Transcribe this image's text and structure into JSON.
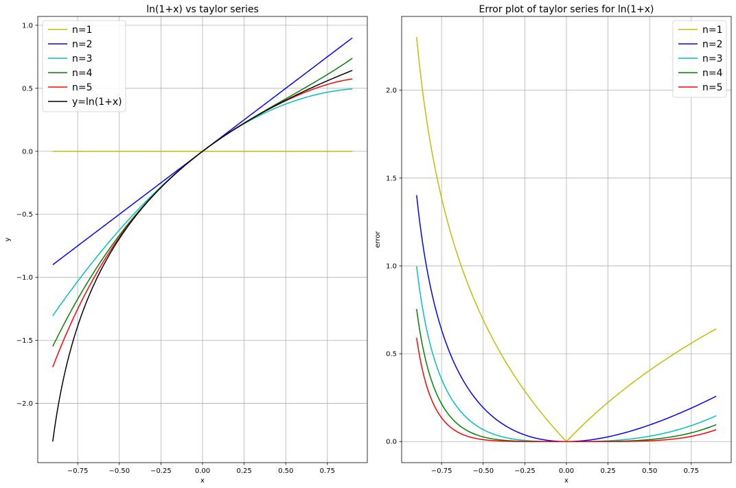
{
  "chart_data": [
    {
      "type": "line",
      "title": "ln(1+x) vs taylor series",
      "xlabel": "x",
      "ylabel": "y",
      "xlim": [
        -0.99,
        0.99
      ],
      "ylim": [
        -2.47,
        1.07
      ],
      "xticks": [
        -0.75,
        -0.5,
        -0.25,
        0.0,
        0.25,
        0.5,
        0.75
      ],
      "xtick_labels": [
        "−0.75",
        "−0.50",
        "−0.25",
        "0.00",
        "0.25",
        "0.50",
        "0.75"
      ],
      "yticks": [
        -2.0,
        -1.5,
        -1.0,
        -0.5,
        0.0,
        0.5,
        1.0
      ],
      "ytick_labels": [
        "−2.0",
        "−1.5",
        "−1.0",
        "−0.5",
        "0.0",
        "0.5",
        "1.0"
      ],
      "grid": true,
      "legend": "top-left",
      "x_range": [
        -0.9,
        0.9
      ],
      "series": [
        {
          "name": "n=1",
          "color": "#bfbf00",
          "kind": "taylor",
          "n": 1
        },
        {
          "name": "n=2",
          "color": "#0000ff",
          "kind": "taylor",
          "n": 2
        },
        {
          "name": "n=3",
          "color": "#00bfbf",
          "kind": "taylor",
          "n": 3
        },
        {
          "name": "n=4",
          "color": "#008000",
          "kind": "taylor",
          "n": 4
        },
        {
          "name": "n=5",
          "color": "#ff0000",
          "kind": "taylor",
          "n": 5
        },
        {
          "name": "y=ln(1+x)",
          "color": "#000000",
          "kind": "exact",
          "n": 0
        }
      ]
    },
    {
      "type": "line",
      "title": "Error plot of taylor series for ln(1+x)",
      "xlabel": "x",
      "ylabel": "error",
      "xlim": [
        -0.99,
        0.99
      ],
      "ylim": [
        -0.12,
        2.42
      ],
      "xticks": [
        -0.75,
        -0.5,
        -0.25,
        0.0,
        0.25,
        0.5,
        0.75
      ],
      "xtick_labels": [
        "−0.75",
        "−0.50",
        "−0.25",
        "0.00",
        "0.25",
        "0.50",
        "0.75"
      ],
      "yticks": [
        0.0,
        0.5,
        1.0,
        1.5,
        2.0
      ],
      "ytick_labels": [
        "0.0",
        "0.5",
        "1.0",
        "1.5",
        "2.0"
      ],
      "grid": true,
      "legend": "top-right",
      "x_range": [
        -0.9,
        0.9
      ],
      "series": [
        {
          "name": "n=1",
          "color": "#bfbf00",
          "kind": "error",
          "n": 1
        },
        {
          "name": "n=2",
          "color": "#0000ff",
          "kind": "error",
          "n": 2
        },
        {
          "name": "n=3",
          "color": "#00bfbf",
          "kind": "error",
          "n": 3
        },
        {
          "name": "n=4",
          "color": "#008000",
          "kind": "error",
          "n": 4
        },
        {
          "name": "n=5",
          "color": "#ff0000",
          "kind": "error",
          "n": 5
        }
      ]
    }
  ]
}
